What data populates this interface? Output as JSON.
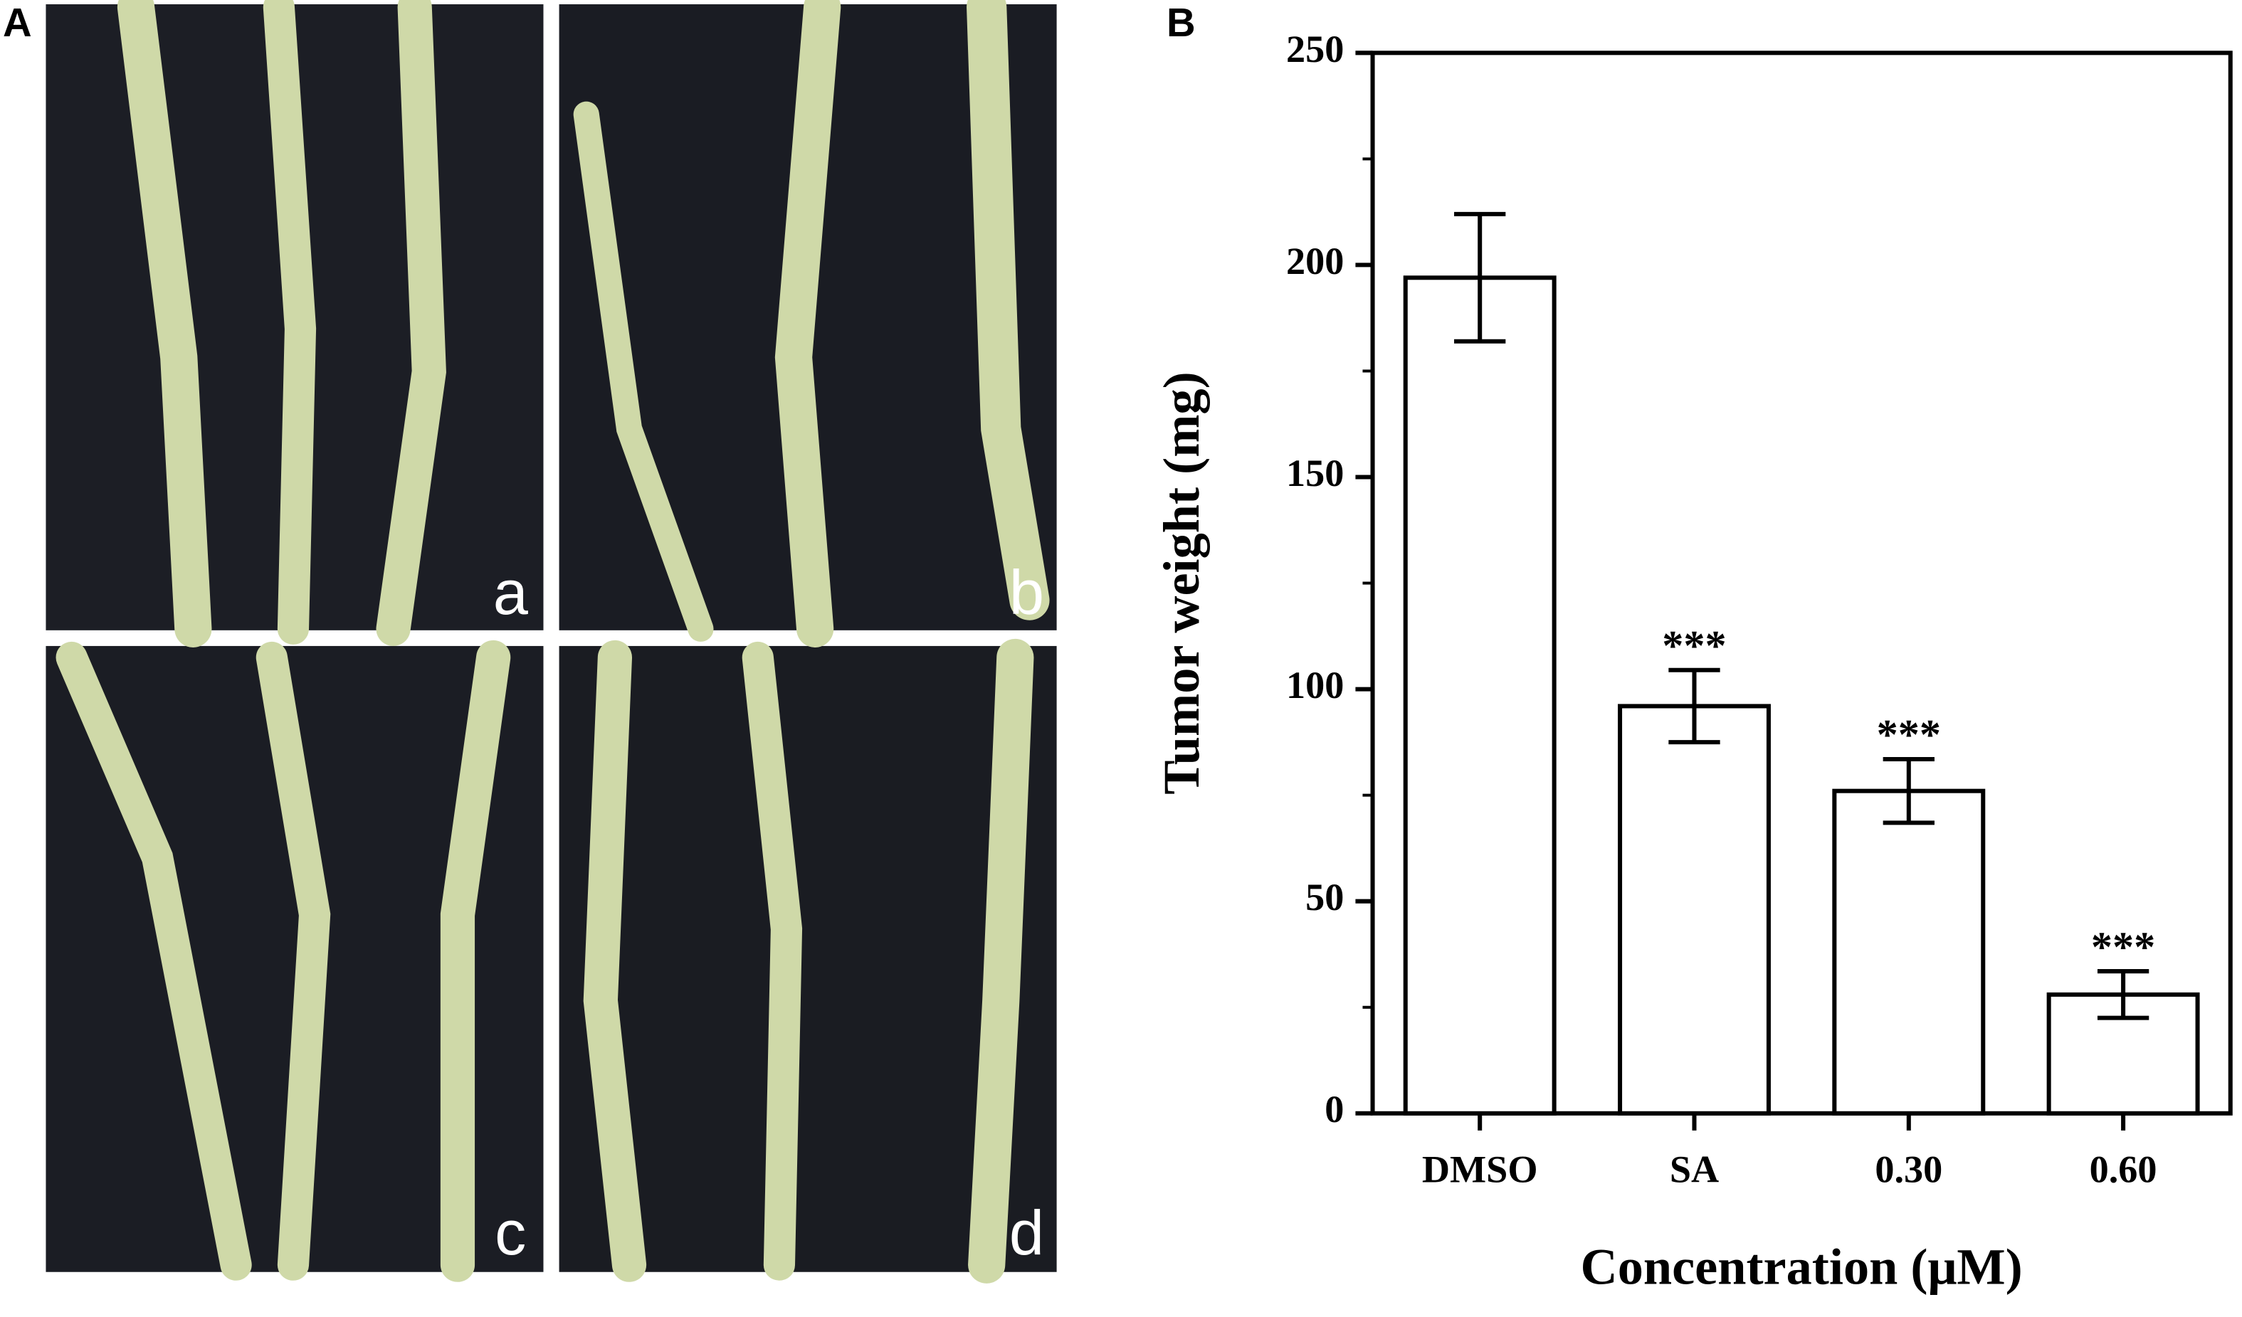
{
  "panel_labels": [
    "A",
    "B"
  ],
  "photo_labels": [
    "a",
    "b",
    "c",
    "d"
  ],
  "chart_data": {
    "type": "bar",
    "xlabel": "Concentration (μM)",
    "ylabel": "Tumor weight (mg)",
    "categories": [
      "DMSO",
      "SA",
      "0.30",
      "0.60"
    ],
    "values": [
      197,
      96,
      76,
      28
    ],
    "errors": [
      15,
      8.5,
      7.5,
      5.5
    ],
    "significance": [
      null,
      "***",
      "***",
      "***"
    ],
    "color": "#ffffff",
    "ylim": [
      0,
      250
    ],
    "yticks": [
      0,
      50,
      100,
      150,
      200,
      250
    ]
  }
}
